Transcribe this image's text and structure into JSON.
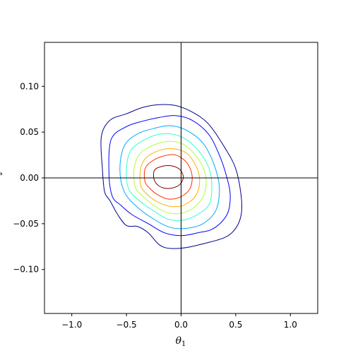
{
  "chart_data": {
    "type": "contour",
    "title": "",
    "xlabel": "θ",
    "xlabel_subscript": "1",
    "ylabel_visible_fragment": "ᵃ",
    "xlim": [
      -1.25,
      1.25
    ],
    "ylim": [
      -0.148,
      0.148
    ],
    "xticks": [
      -1.0,
      -0.5,
      0.0,
      0.5,
      1.0
    ],
    "xtick_labels": [
      "−1.0",
      "−0.5",
      "0.0",
      "0.5",
      "1.0"
    ],
    "yticks": [
      0.1,
      0.05,
      0.0,
      -0.05,
      -0.1
    ],
    "ytick_labels": [
      "0.10",
      "0.05",
      "0.00",
      "−0.05",
      "−0.10"
    ],
    "reference_lines": {
      "x": 0,
      "y": 0
    },
    "colormap": "jet",
    "levels": [
      {
        "level": 1,
        "color": "#00008f",
        "points": [
          [
            -0.7,
            -0.015
          ],
          [
            -0.72,
            0.01
          ],
          [
            -0.73,
            0.045
          ],
          [
            -0.65,
            0.063
          ],
          [
            -0.5,
            0.07
          ],
          [
            -0.35,
            0.077
          ],
          [
            -0.2,
            0.08
          ],
          [
            -0.05,
            0.079
          ],
          [
            0.1,
            0.072
          ],
          [
            0.25,
            0.059
          ],
          [
            0.4,
            0.033
          ],
          [
            0.5,
            0.01
          ],
          [
            0.55,
            -0.02
          ],
          [
            0.55,
            -0.04
          ],
          [
            0.5,
            -0.055
          ],
          [
            0.4,
            -0.065
          ],
          [
            0.2,
            -0.072
          ],
          [
            0.05,
            -0.076
          ],
          [
            -0.1,
            -0.077
          ],
          [
            -0.2,
            -0.073
          ],
          [
            -0.3,
            -0.06
          ],
          [
            -0.4,
            -0.053
          ],
          [
            -0.5,
            -0.052
          ],
          [
            -0.58,
            -0.04
          ],
          [
            -0.65,
            -0.025
          ]
        ]
      },
      {
        "level": 2,
        "color": "#0000ff",
        "points": [
          [
            -0.63,
            -0.02
          ],
          [
            -0.66,
            0.005
          ],
          [
            -0.64,
            0.042
          ],
          [
            -0.5,
            0.056
          ],
          [
            -0.35,
            0.062
          ],
          [
            -0.2,
            0.066
          ],
          [
            -0.05,
            0.068
          ],
          [
            0.1,
            0.063
          ],
          [
            0.25,
            0.048
          ],
          [
            0.35,
            0.025
          ],
          [
            0.42,
            0.0
          ],
          [
            0.45,
            -0.02
          ],
          [
            0.42,
            -0.04
          ],
          [
            0.3,
            -0.055
          ],
          [
            0.15,
            -0.06
          ],
          [
            0.0,
            -0.063
          ],
          [
            -0.15,
            -0.06
          ],
          [
            -0.3,
            -0.05
          ],
          [
            -0.45,
            -0.04
          ],
          [
            -0.55,
            -0.03
          ]
        ]
      },
      {
        "level": 3,
        "color": "#00aaff",
        "points": [
          [
            -0.52,
            -0.015
          ],
          [
            -0.56,
            0.01
          ],
          [
            -0.52,
            0.035
          ],
          [
            -0.4,
            0.048
          ],
          [
            -0.25,
            0.054
          ],
          [
            -0.1,
            0.057
          ],
          [
            0.05,
            0.052
          ],
          [
            0.2,
            0.038
          ],
          [
            0.3,
            0.015
          ],
          [
            0.35,
            -0.01
          ],
          [
            0.32,
            -0.035
          ],
          [
            0.2,
            -0.05
          ],
          [
            0.05,
            -0.055
          ],
          [
            -0.1,
            -0.054
          ],
          [
            -0.25,
            -0.045
          ],
          [
            -0.4,
            -0.032
          ]
        ]
      },
      {
        "level": 4,
        "color": "#33ffcc",
        "points": [
          [
            -0.48,
            -0.012
          ],
          [
            -0.5,
            0.01
          ],
          [
            -0.46,
            0.03
          ],
          [
            -0.33,
            0.042
          ],
          [
            -0.18,
            0.048
          ],
          [
            -0.02,
            0.046
          ],
          [
            0.12,
            0.035
          ],
          [
            0.24,
            0.015
          ],
          [
            0.28,
            -0.005
          ],
          [
            0.26,
            -0.028
          ],
          [
            0.15,
            -0.04
          ],
          [
            0.02,
            -0.046
          ],
          [
            -0.12,
            -0.045
          ],
          [
            -0.25,
            -0.036
          ],
          [
            -0.37,
            -0.026
          ]
        ]
      },
      {
        "level": 5,
        "color": "#b0ff33",
        "points": [
          [
            -0.42,
            -0.01
          ],
          [
            -0.43,
            0.01
          ],
          [
            -0.38,
            0.026
          ],
          [
            -0.25,
            0.036
          ],
          [
            -0.1,
            0.04
          ],
          [
            0.03,
            0.036
          ],
          [
            0.15,
            0.022
          ],
          [
            0.22,
            0.005
          ],
          [
            0.22,
            -0.015
          ],
          [
            0.14,
            -0.03
          ],
          [
            0.02,
            -0.038
          ],
          [
            -0.12,
            -0.038
          ],
          [
            -0.25,
            -0.03
          ],
          [
            -0.35,
            -0.02
          ]
        ]
      },
      {
        "level": 6,
        "color": "#ffb000",
        "points": [
          [
            -0.37,
            -0.008
          ],
          [
            -0.37,
            0.01
          ],
          [
            -0.32,
            0.022
          ],
          [
            -0.2,
            0.03
          ],
          [
            -0.08,
            0.032
          ],
          [
            0.05,
            0.027
          ],
          [
            0.14,
            0.012
          ],
          [
            0.17,
            -0.004
          ],
          [
            0.13,
            -0.02
          ],
          [
            0.02,
            -0.03
          ],
          [
            -0.1,
            -0.031
          ],
          [
            -0.22,
            -0.026
          ],
          [
            -0.31,
            -0.018
          ]
        ]
      },
      {
        "level": 7,
        "color": "#ff3000",
        "points": [
          [
            -0.33,
            -0.004
          ],
          [
            -0.33,
            0.01
          ],
          [
            -0.27,
            0.018
          ],
          [
            -0.16,
            0.024
          ],
          [
            -0.05,
            0.025
          ],
          [
            0.05,
            0.017
          ],
          [
            0.1,
            0.003
          ],
          [
            0.08,
            -0.012
          ],
          [
            -0.01,
            -0.021
          ],
          [
            -0.12,
            -0.023
          ],
          [
            -0.22,
            -0.018
          ],
          [
            -0.29,
            -0.011
          ]
        ]
      },
      {
        "level": 8,
        "color": "#7f0000",
        "points": [
          [
            -0.25,
            0.0
          ],
          [
            -0.24,
            0.009
          ],
          [
            -0.16,
            0.013
          ],
          [
            -0.08,
            0.013
          ],
          [
            -0.01,
            0.009
          ],
          [
            0.02,
            0.001
          ],
          [
            -0.01,
            -0.007
          ],
          [
            -0.08,
            -0.011
          ],
          [
            -0.16,
            -0.011
          ],
          [
            -0.22,
            -0.007
          ]
        ]
      }
    ]
  }
}
